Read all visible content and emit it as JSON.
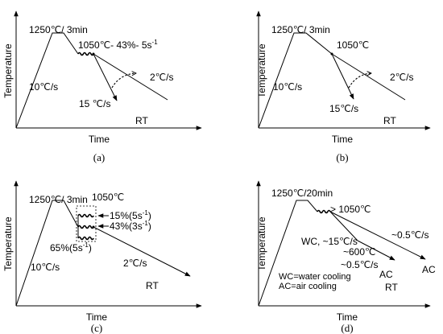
{
  "axes": {
    "ylabel": "Temperature",
    "xlabel": "Time"
  },
  "panels": {
    "a": {
      "caption": "(a)",
      "reheat": "1250℃/ 3min",
      "heat_rate": "10℃/s",
      "deform": "1050℃- 43%- 5s",
      "deform_sup": "-1",
      "fast_cool": "15 ℃/s",
      "slow_cool": "2℃/s",
      "rt": "RT"
    },
    "b": {
      "caption": "(b)",
      "reheat": "1250℃/ 3min",
      "heat_rate": "10℃/s",
      "deform": "1050℃",
      "fast_cool": "15℃/s",
      "slow_cool": "2℃/s",
      "rt": "RT"
    },
    "c": {
      "caption": "(c)",
      "reheat": "1250℃/ 3min",
      "heat_rate": "10℃/s",
      "deform": "1050℃",
      "strain1": "15%(5s",
      "strain1_sup": "-1",
      "strain1_end": ")",
      "strain2": "43%(3s",
      "strain2_sup": "-1",
      "strain2_end": ")",
      "strain3": "65%(5s",
      "strain3_sup": "-1",
      "strain3_end": ")",
      "slow_cool": "2℃/s",
      "rt": "RT"
    },
    "d": {
      "caption": "(d)",
      "reheat": "1250℃/20min",
      "deform": "> 1050℃",
      "wc_rate": "WC, ~15℃/s",
      "interrupt": "~600℃",
      "air_rate_low": "~0.5℃/s",
      "air_rate_high": "~0.5℃/s",
      "ac_low": "AC",
      "ac_high": "AC",
      "legend_wc": "WC=water cooling",
      "legend_ac": "AC=air cooling",
      "rt": "RT"
    }
  }
}
